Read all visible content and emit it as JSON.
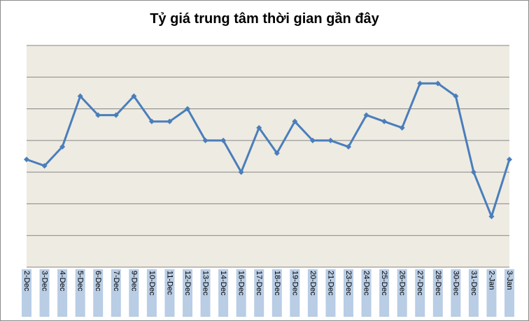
{
  "chart_data": {
    "type": "line",
    "title": "Tỷ giá trung tâm thời gian gần đây",
    "xlabel": "",
    "ylabel": "",
    "grid": true,
    "legend": "none",
    "categories": [
      "2-Dec",
      "3-Dec",
      "4-Dec",
      "5-Dec",
      "6-Dec",
      "7-Dec",
      "9-Dec",
      "10-Dec",
      "11-Dec",
      "12-Dec",
      "13-Dec",
      "14-Dec",
      "16-Dec",
      "17-Dec",
      "18-Dec",
      "19-Dec",
      "20-Dec",
      "21-Dec",
      "23-Dec",
      "24-Dec",
      "25-Dec",
      "26-Dec",
      "27-Dec",
      "28-Dec",
      "30-Dec",
      "31-Dec",
      "2-Jan",
      "3-Jan"
    ],
    "series": [
      {
        "values": [
          3.4,
          3.2,
          3.8,
          5.4,
          4.8,
          4.8,
          5.4,
          4.6,
          4.6,
          5.0,
          4.0,
          4.0,
          3.0,
          4.4,
          3.6,
          4.6,
          4.0,
          4.0,
          3.8,
          4.8,
          4.6,
          4.4,
          5.8,
          5.8,
          5.4,
          3.0,
          1.6,
          3.4
        ]
      }
    ],
    "ylim": [
      0,
      7
    ],
    "ygrid_step": 1,
    "colors": {
      "line": "#4a7ebb",
      "plot_bg": "#eeebe2",
      "grid": "#868686",
      "tick_label_bg": "#b9cde5"
    }
  }
}
